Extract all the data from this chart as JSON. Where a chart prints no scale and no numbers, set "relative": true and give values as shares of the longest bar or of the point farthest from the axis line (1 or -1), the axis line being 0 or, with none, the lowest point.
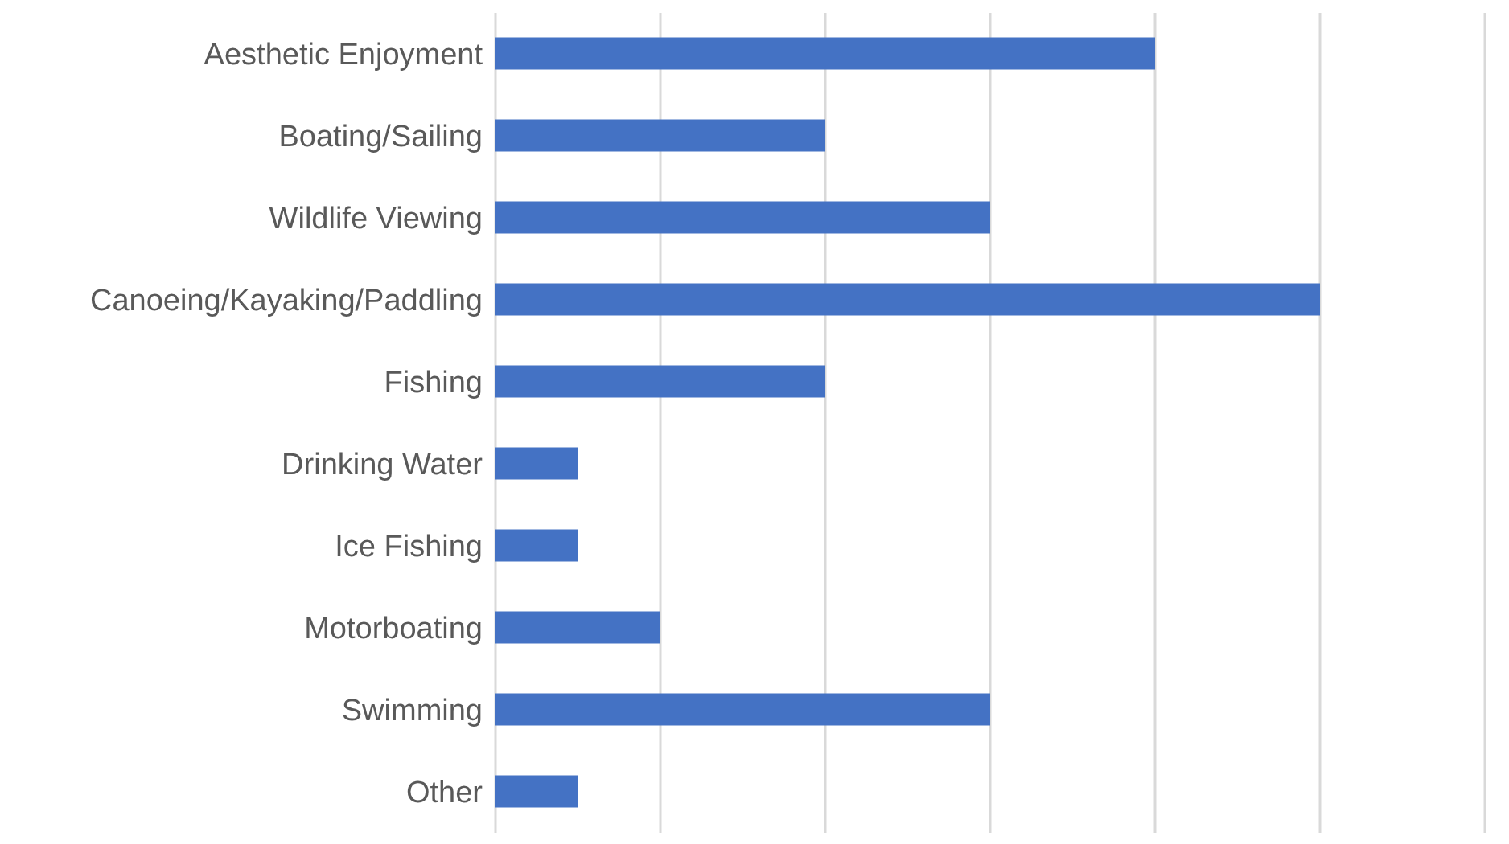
{
  "chart_data": {
    "type": "bar",
    "orientation": "horizontal",
    "relative": true,
    "categories": [
      "Aesthetic Enjoyment",
      "Boating/Sailing",
      "Wildlife Viewing",
      "Canoeing/Kayaking/Paddling",
      "Fishing",
      "Drinking Water",
      "Ice Fishing",
      "Motorboating",
      "Swimming",
      "Other"
    ],
    "values": [
      0.8,
      0.4,
      0.6,
      1,
      0.4,
      0.1,
      0.1,
      0.2,
      0.6,
      0.1
    ],
    "color": "#4472c4",
    "grid": "x"
  }
}
